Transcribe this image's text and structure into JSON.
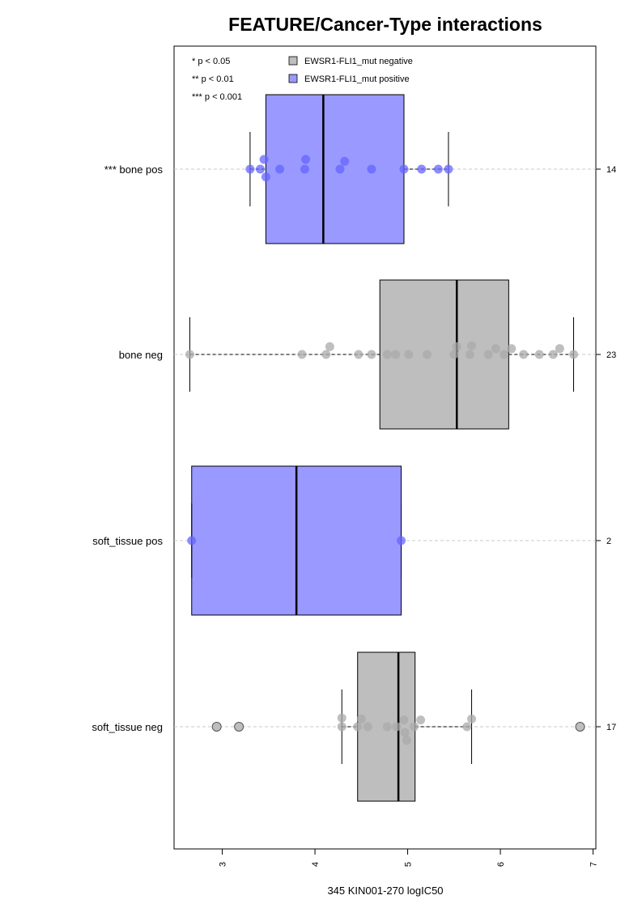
{
  "chart_data": {
    "type": "boxplot",
    "title": "FEATURE/Cancer-Type interactions",
    "xlabel": "345 KIN001-270 logIC50",
    "ylabel": "",
    "xlim": [
      2.48,
      7.03
    ],
    "xticks": [
      3,
      4,
      5,
      6,
      7
    ],
    "grid": "dashed horizontal line per group",
    "legend": {
      "placement": "top",
      "significance": [
        "* p < 0.05",
        "** p < 0.01",
        "*** p < 0.001"
      ],
      "entries": [
        {
          "label": "EWSR1-FLI1_mut negative",
          "color": "#bebebe"
        },
        {
          "label": "EWSR1-FLI1_mut positive",
          "color": "#9999ff"
        }
      ]
    },
    "colors": {
      "negative": "#bebebe",
      "positive": "#9999ff",
      "positive_point": "#6666ff",
      "negative_point": "#aaaaaa"
    },
    "groups": [
      {
        "label": "*** bone pos",
        "n": "14",
        "status": "positive",
        "q1": 3.47,
        "median": 4.09,
        "q3": 4.96,
        "whisker_low": 3.3,
        "whisker_high": 5.44,
        "points": [
          {
            "x": 3.3,
            "y": 0
          },
          {
            "x": 3.41,
            "y": 0
          },
          {
            "x": 3.45,
            "y": 0.5
          },
          {
            "x": 3.47,
            "y": -0.4
          },
          {
            "x": 3.62,
            "y": 0
          },
          {
            "x": 3.89,
            "y": 0
          },
          {
            "x": 3.9,
            "y": 0.5
          },
          {
            "x": 4.27,
            "y": 0
          },
          {
            "x": 4.32,
            "y": 0.4
          },
          {
            "x": 4.61,
            "y": 0
          },
          {
            "x": 4.96,
            "y": 0
          },
          {
            "x": 5.15,
            "y": 0
          },
          {
            "x": 5.33,
            "y": 0
          },
          {
            "x": 5.44,
            "y": 0
          }
        ],
        "outliers": []
      },
      {
        "label": "bone neg",
        "n": "23",
        "status": "negative",
        "q1": 4.7,
        "median": 5.53,
        "q3": 6.09,
        "whisker_low": 2.65,
        "whisker_high": 6.79,
        "points": [
          {
            "x": 2.65,
            "y": 0
          },
          {
            "x": 3.86,
            "y": 0
          },
          {
            "x": 4.12,
            "y": 0
          },
          {
            "x": 4.16,
            "y": 0.4
          },
          {
            "x": 4.47,
            "y": 0
          },
          {
            "x": 4.61,
            "y": 0
          },
          {
            "x": 4.78,
            "y": 0
          },
          {
            "x": 4.87,
            "y": 0
          },
          {
            "x": 5.01,
            "y": 0
          },
          {
            "x": 5.21,
            "y": 0
          },
          {
            "x": 5.5,
            "y": 0
          },
          {
            "x": 5.53,
            "y": 0.4
          },
          {
            "x": 5.67,
            "y": 0
          },
          {
            "x": 5.69,
            "y": 0.45
          },
          {
            "x": 5.87,
            "y": 0
          },
          {
            "x": 5.95,
            "y": 0.3
          },
          {
            "x": 6.04,
            "y": 0
          },
          {
            "x": 6.12,
            "y": 0.3
          },
          {
            "x": 6.25,
            "y": 0
          },
          {
            "x": 6.42,
            "y": 0
          },
          {
            "x": 6.57,
            "y": 0
          },
          {
            "x": 6.64,
            "y": 0.3
          },
          {
            "x": 6.79,
            "y": 0
          }
        ],
        "outliers": []
      },
      {
        "label": "soft_tissue pos",
        "n": "2",
        "status": "positive",
        "q1": 2.67,
        "median": 3.8,
        "q3": 4.93,
        "whisker_low": 2.67,
        "whisker_high": 4.93,
        "points": [
          {
            "x": 2.67,
            "y": 0
          },
          {
            "x": 4.93,
            "y": 0
          }
        ],
        "outliers": []
      },
      {
        "label": "soft_tissue neg",
        "n": "17",
        "status": "negative",
        "q1": 4.46,
        "median": 4.9,
        "q3": 5.08,
        "whisker_low": 4.29,
        "whisker_high": 5.69,
        "points": [
          {
            "x": 4.29,
            "y": 0
          },
          {
            "x": 4.29,
            "y": 0.45
          },
          {
            "x": 4.46,
            "y": 0
          },
          {
            "x": 4.5,
            "y": 0.4
          },
          {
            "x": 4.57,
            "y": 0
          },
          {
            "x": 4.78,
            "y": 0
          },
          {
            "x": 4.88,
            "y": 0
          },
          {
            "x": 4.96,
            "y": 0.35
          },
          {
            "x": 4.97,
            "y": -0.3
          },
          {
            "x": 4.99,
            "y": -0.7
          },
          {
            "x": 5.07,
            "y": 0
          },
          {
            "x": 5.14,
            "y": 0.35
          },
          {
            "x": 5.64,
            "y": 0
          },
          {
            "x": 5.69,
            "y": 0.4
          }
        ],
        "outliers": [
          {
            "x": 2.94
          },
          {
            "x": 3.18
          },
          {
            "x": 6.86
          }
        ]
      }
    ]
  }
}
